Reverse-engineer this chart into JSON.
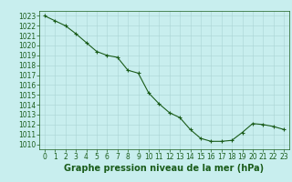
{
  "x": [
    0,
    1,
    2,
    3,
    4,
    5,
    6,
    7,
    8,
    9,
    10,
    11,
    12,
    13,
    14,
    15,
    16,
    17,
    18,
    19,
    20,
    21,
    22,
    23
  ],
  "y": [
    1023.0,
    1022.5,
    1022.0,
    1021.2,
    1020.3,
    1019.4,
    1019.0,
    1018.8,
    1017.5,
    1017.2,
    1015.2,
    1014.1,
    1013.2,
    1012.7,
    1011.5,
    1010.6,
    1010.3,
    1010.3,
    1010.4,
    1011.2,
    1012.1,
    1012.0,
    1011.8,
    1011.5
  ],
  "line_color": "#1a5c1a",
  "marker": "+",
  "background_color": "#c8eeee",
  "grid_color": "#aad4d4",
  "title": "Graphe pression niveau de la mer (hPa)",
  "ylim": [
    1009.5,
    1023.5
  ],
  "xlim": [
    -0.5,
    23.5
  ],
  "yticks": [
    1010,
    1011,
    1012,
    1013,
    1014,
    1015,
    1016,
    1017,
    1018,
    1019,
    1020,
    1021,
    1022,
    1023
  ],
  "xticks": [
    0,
    1,
    2,
    3,
    4,
    5,
    6,
    7,
    8,
    9,
    10,
    11,
    12,
    13,
    14,
    15,
    16,
    17,
    18,
    19,
    20,
    21,
    22,
    23
  ],
  "tick_fontsize": 5.5,
  "title_fontsize": 7,
  "title_color": "#1a5c1a",
  "tick_color": "#1a5c1a",
  "axis_color": "#1a5c1a"
}
